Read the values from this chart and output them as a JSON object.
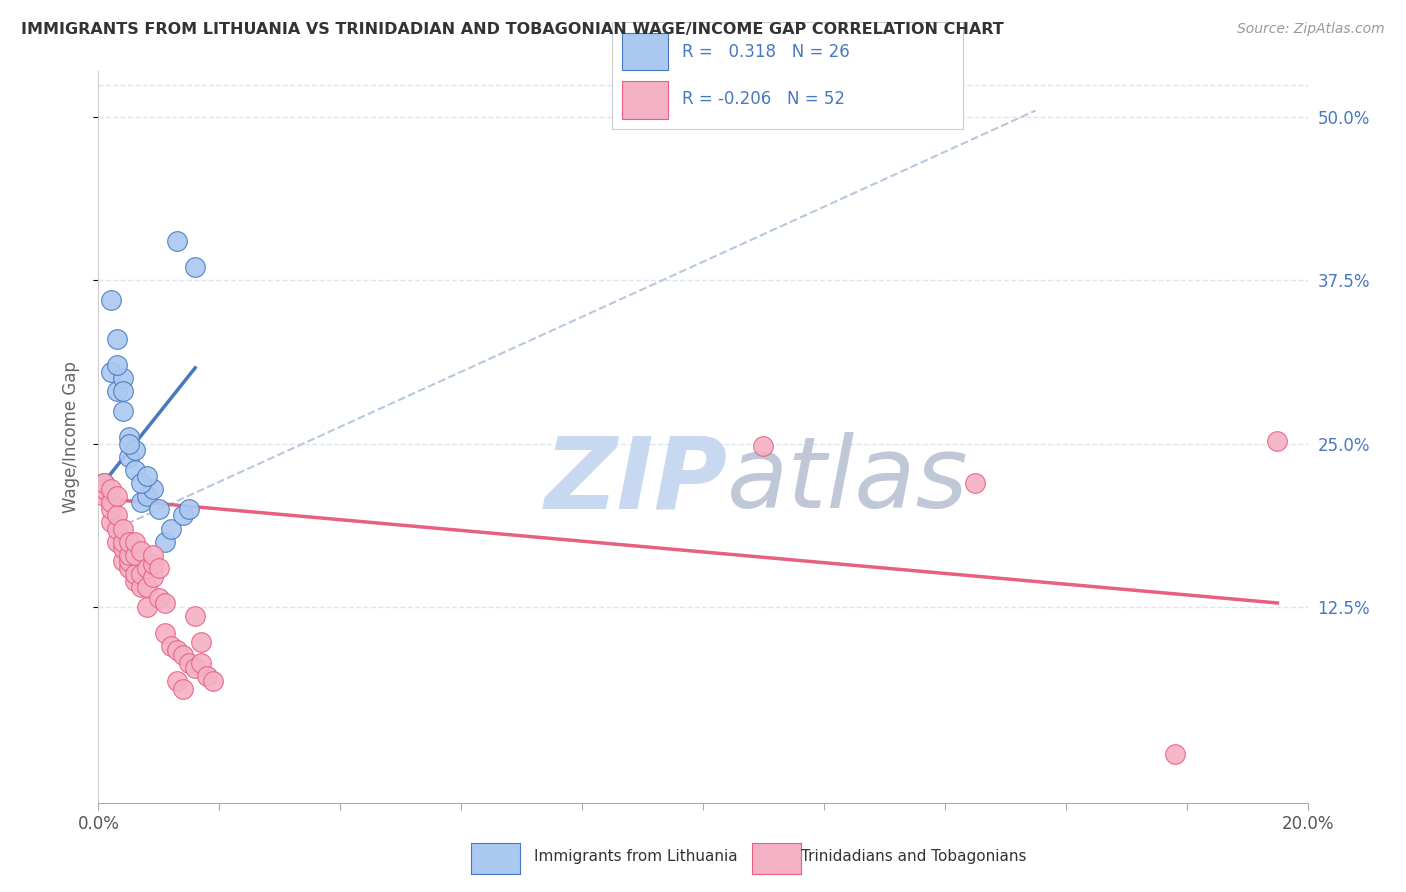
{
  "title": "IMMIGRANTS FROM LITHUANIA VS TRINIDADIAN AND TOBAGONIAN WAGE/INCOME GAP CORRELATION CHART",
  "source": "Source: ZipAtlas.com",
  "ylabel": "Wage/Income Gap",
  "right_yticks": [
    0.125,
    0.25,
    0.375,
    0.5
  ],
  "right_ytick_labels": [
    "12.5%",
    "25.0%",
    "37.5%",
    "50.0%"
  ],
  "xmin": 0.0,
  "xmax": 0.2,
  "ymin": -0.025,
  "ymax": 0.535,
  "blue_R": 0.318,
  "blue_N": 26,
  "pink_R": -0.206,
  "pink_N": 52,
  "blue_color": "#aac8f0",
  "pink_color": "#f4b0c4",
  "blue_line_color": "#4878c0",
  "pink_line_color": "#e86080",
  "dash_line_color": "#b8c8dc",
  "watermark_zip_color": "#c8d8f0",
  "watermark_atlas_color": "#c0c8d8",
  "background_color": "#ffffff",
  "grid_color": "#dde4ee",
  "blue_scatter_x": [
    0.001,
    0.002,
    0.003,
    0.004,
    0.005,
    0.006,
    0.007,
    0.008,
    0.009,
    0.01,
    0.011,
    0.012,
    0.013,
    0.014,
    0.015,
    0.016,
    0.003,
    0.004,
    0.005,
    0.006,
    0.007,
    0.008,
    0.002,
    0.003,
    0.004,
    0.005
  ],
  "blue_scatter_y": [
    0.22,
    0.305,
    0.29,
    0.275,
    0.24,
    0.23,
    0.205,
    0.21,
    0.215,
    0.2,
    0.175,
    0.185,
    0.405,
    0.195,
    0.2,
    0.385,
    0.33,
    0.3,
    0.255,
    0.245,
    0.22,
    0.225,
    0.36,
    0.31,
    0.29,
    0.25
  ],
  "pink_scatter_x": [
    0.001,
    0.001,
    0.001,
    0.002,
    0.002,
    0.002,
    0.002,
    0.003,
    0.003,
    0.003,
    0.003,
    0.004,
    0.004,
    0.004,
    0.004,
    0.005,
    0.005,
    0.005,
    0.005,
    0.006,
    0.006,
    0.006,
    0.006,
    0.007,
    0.007,
    0.007,
    0.008,
    0.008,
    0.008,
    0.009,
    0.009,
    0.009,
    0.01,
    0.01,
    0.011,
    0.011,
    0.012,
    0.013,
    0.013,
    0.014,
    0.014,
    0.015,
    0.016,
    0.016,
    0.017,
    0.017,
    0.018,
    0.019,
    0.11,
    0.145,
    0.178,
    0.195
  ],
  "pink_scatter_y": [
    0.21,
    0.215,
    0.22,
    0.19,
    0.2,
    0.205,
    0.215,
    0.175,
    0.185,
    0.195,
    0.21,
    0.16,
    0.17,
    0.175,
    0.185,
    0.155,
    0.16,
    0.165,
    0.175,
    0.145,
    0.15,
    0.165,
    0.175,
    0.14,
    0.15,
    0.168,
    0.125,
    0.14,
    0.155,
    0.148,
    0.158,
    0.165,
    0.132,
    0.155,
    0.105,
    0.128,
    0.095,
    0.068,
    0.092,
    0.062,
    0.088,
    0.082,
    0.078,
    0.118,
    0.082,
    0.098,
    0.072,
    0.068,
    0.248,
    0.22,
    0.012,
    0.252
  ],
  "blue_trend_x": [
    0.0005,
    0.016
  ],
  "blue_trend_y": [
    0.218,
    0.308
  ],
  "pink_trend_x": [
    0.0005,
    0.195
  ],
  "pink_trend_y": [
    0.208,
    0.128
  ],
  "dash_trend_x": [
    0.003,
    0.155
  ],
  "dash_trend_y": [
    0.185,
    0.505
  ],
  "xticks": [
    0.0,
    0.02,
    0.04,
    0.06,
    0.08,
    0.1,
    0.12,
    0.14,
    0.16,
    0.18,
    0.2
  ],
  "xtick_labels_show": [
    "0.0%",
    "",
    "",
    "",
    "",
    "",
    "",
    "",
    "",
    "",
    "20.0%"
  ],
  "legend_label1": "Immigrants from Lithuania",
  "legend_label2": "Trinidadians and Tobagonians"
}
